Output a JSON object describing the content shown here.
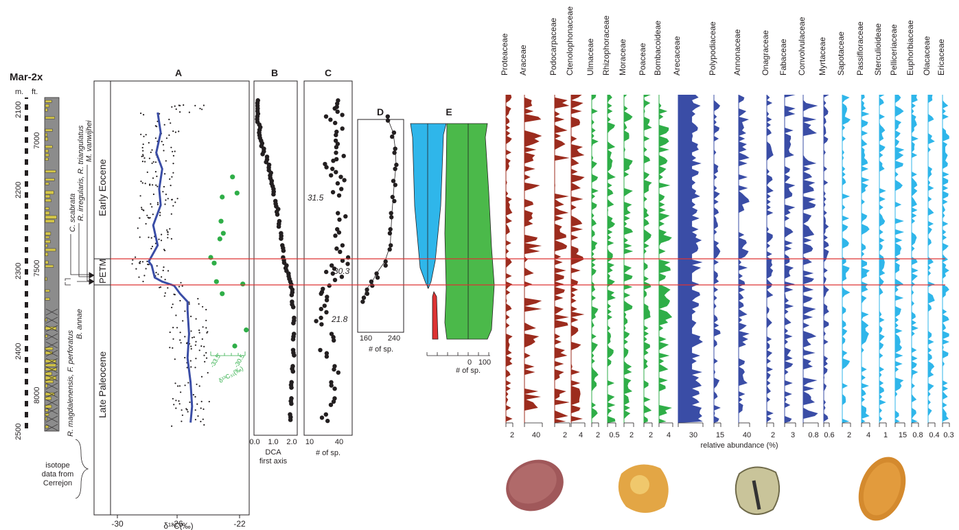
{
  "figure": {
    "section": "Mar-2x",
    "units": {
      "m": "m.",
      "ft": "ft."
    },
    "depth_m_ticks": [
      "2100",
      "2200",
      "2300",
      "2400",
      "2500"
    ],
    "depth_ft_ticks": [
      "7000",
      "7500",
      "8000"
    ],
    "epochs": {
      "early": "Early Eocene",
      "petm": "PETM",
      "late": "Late Paleocene"
    },
    "species_labels": [
      "R. magdalenensis, F. perforatus",
      "B. annae",
      "C. scabrata",
      "R. irregularis, R. triangulatus",
      "M. vanwijhei"
    ],
    "isotope_note": [
      "isotope",
      "data from",
      "Cerrejon"
    ],
    "colors": {
      "blue": "#3a4da6",
      "green": "#2fae48",
      "red": "#dd3333",
      "sky": "#2fb6ea",
      "brown": "#9c2c1e",
      "palegreen": "#4bb94a",
      "ink": "#231f20"
    }
  },
  "panels": {
    "A": {
      "label": "A",
      "xlabel": "δ¹³C(‰)",
      "ticks": [
        "-30",
        "-26",
        "-22"
      ],
      "inset_ticks": [
        "-33.5",
        "-30.5"
      ],
      "inset_label": "δ¹³C₃₁(‰)"
    },
    "B": {
      "label": "B",
      "xlabel": "DCA",
      "xlabel2": "first axis",
      "ticks": [
        "0.0",
        "1.0",
        "2.0"
      ]
    },
    "C": {
      "label": "C",
      "xlabel": "# of sp.",
      "ticks": [
        "10",
        "40"
      ],
      "annotations": [
        "31.5",
        "30.3",
        "21.8"
      ]
    },
    "D": {
      "label": "D",
      "xlabel": "# of sp.",
      "ticks": [
        "160",
        "240"
      ]
    },
    "E": {
      "label": "E",
      "xlabel": "# of sp.",
      "ticks": [
        "0",
        "100"
      ]
    }
  },
  "pollen": {
    "xlabel": "relative abundance (%)",
    "taxa": [
      {
        "name": "Proteaceae",
        "scale": "2",
        "color": "brown"
      },
      {
        "name": "Araceae",
        "scale": "40",
        "color": "brown"
      },
      {
        "name": "Podocarpaceae",
        "scale": "2",
        "color": "brown"
      },
      {
        "name": "Ctenolophonaceae",
        "scale": "4",
        "color": "brown"
      },
      {
        "name": "Ulmaceae",
        "scale": "2",
        "color": "green"
      },
      {
        "name": "Rhizophoraceae",
        "scale": "0.5",
        "color": "green"
      },
      {
        "name": "Moraceae",
        "scale": "2",
        "color": "green"
      },
      {
        "name": "Poaceae",
        "scale": "2",
        "color": "green"
      },
      {
        "name": "Bombacoideae",
        "scale": "4",
        "color": "green"
      },
      {
        "name": "Arecaceae",
        "scale": "30",
        "color": "blue"
      },
      {
        "name": "Polypodiaceae",
        "scale": "15",
        "color": "blue"
      },
      {
        "name": "Annonaceae",
        "scale": "40",
        "color": "blue"
      },
      {
        "name": "Onagraceae",
        "scale": "2",
        "color": "blue"
      },
      {
        "name": "Fabaceae",
        "scale": "3",
        "color": "blue"
      },
      {
        "name": "Convolvulaceae",
        "scale": "0.8",
        "color": "blue"
      },
      {
        "name": "Myrtaceae",
        "scale": "0.6",
        "color": "blue"
      },
      {
        "name": "Sapotaceae",
        "scale": "2",
        "color": "sky"
      },
      {
        "name": "Passifloraceae",
        "scale": "4",
        "color": "sky"
      },
      {
        "name": "Sterculioideae",
        "scale": "1",
        "color": "sky"
      },
      {
        "name": "Pelliceriaceae",
        "scale": "15",
        "color": "sky"
      },
      {
        "name": "Euphorbiaceae",
        "scale": "0.8",
        "color": "sky"
      },
      {
        "name": "Olacaceae",
        "scale": "0.4",
        "color": "sky"
      },
      {
        "name": "Ericaceae",
        "scale": "0.3",
        "color": "sky"
      }
    ]
  },
  "chart_data": [
    {
      "type": "scatter",
      "panel": "A",
      "xlabel": "δ¹³C(‰)",
      "ylabel": "m.",
      "xlim": [
        -31,
        -21.6
      ],
      "ylim": [
        2500,
        2080
      ],
      "smoothed_series": {
        "depth": [
          2105,
          2130,
          2155,
          2175,
          2200,
          2220,
          2245,
          2270,
          2290,
          2295,
          2310,
          2315,
          2320,
          2330,
          2340,
          2350,
          2380,
          2410,
          2440,
          2470,
          2490
        ],
        "d13c": [
          -27.3,
          -27.1,
          -27.4,
          -27.0,
          -27.2,
          -27.1,
          -27.6,
          -27.3,
          -27.9,
          -27.7,
          -27.5,
          -27.0,
          -26.2,
          -25.8,
          -25.3,
          -25.3,
          -25.2,
          -25.3,
          -25.1,
          -25.0,
          -25.1
        ]
      },
      "inset_series": {
        "name": "δ¹³C₃₁(‰)",
        "xlim": [
          -33.5,
          -30.5
        ],
        "depth": [
          2185,
          2205,
          2210,
          2240,
          2255,
          2262,
          2285,
          2292,
          2315,
          2318,
          2330,
          2375,
          2395
        ],
        "d13c31": [
          -31.6,
          -31.2,
          -32.5,
          -32.6,
          -32.4,
          -32.7,
          -33.5,
          -33.2,
          -33.0,
          -30.7,
          -32.5,
          -30.4,
          -31.4
        ]
      }
    },
    {
      "type": "scatter",
      "panel": "B",
      "xlabel": "DCA first axis",
      "xlim": [
        0,
        2.6
      ],
      "ylim": [
        2500,
        2080
      ],
      "depth": [
        2090,
        2100,
        2110,
        2120,
        2130,
        2140,
        2150,
        2160,
        2170,
        2180,
        2190,
        2200,
        2215,
        2225,
        2240,
        2255,
        2270,
        2285,
        2295,
        2305,
        2315,
        2325,
        2340,
        2360,
        2380,
        2400,
        2420,
        2440,
        2460,
        2480
      ],
      "values": [
        0.1,
        0.1,
        0.1,
        0.2,
        0.2,
        0.3,
        0.4,
        0.6,
        0.7,
        0.8,
        0.9,
        1.0,
        1.1,
        1.2,
        1.3,
        1.4,
        1.5,
        1.55,
        1.7,
        1.85,
        1.95,
        2.0,
        2.05,
        2.1,
        2.1,
        2.1,
        2.05,
        2.0,
        1.95,
        1.9
      ]
    },
    {
      "type": "scatter",
      "panel": "C",
      "xlabel": "# of sp.",
      "xlim": [
        0,
        55
      ],
      "ylim": [
        2500,
        2080
      ],
      "depth": [
        2090,
        2100,
        2110,
        2125,
        2140,
        2155,
        2165,
        2175,
        2185,
        2200,
        2230,
        2250,
        2270,
        2285,
        2295,
        2305,
        2320,
        2330,
        2345,
        2360,
        2380,
        2400,
        2420,
        2440,
        2460,
        2480
      ],
      "values": [
        34,
        38,
        30,
        42,
        35,
        40,
        28,
        36,
        44,
        38,
        42,
        35,
        40,
        45,
        30,
        38,
        25,
        22,
        20,
        15,
        28,
        22,
        38,
        30,
        35,
        25
      ],
      "annotations": [
        "31.5",
        "30.3",
        "21.8"
      ]
    },
    {
      "type": "line",
      "panel": "D",
      "xlabel": "# of sp.",
      "xlim": [
        150,
        260
      ],
      "ylim": [
        2500,
        2080
      ],
      "depth": [
        2110,
        2130,
        2150,
        2170,
        2190,
        2210,
        2230,
        2250,
        2270,
        2290,
        2305,
        2315,
        2325,
        2335
      ],
      "values": [
        220,
        235,
        240,
        242,
        238,
        235,
        232,
        230,
        228,
        215,
        195,
        185,
        170,
        165
      ]
    },
    {
      "type": "area",
      "panel": "E",
      "xlabel": "# of sp.",
      "xlim": [
        -200,
        160
      ],
      "ylim": [
        2500,
        2080
      ],
      "series": [
        {
          "depth": [
            2115,
            2300,
            2325
          ],
          "halfwidth": [
            50,
            20,
            2
          ]
        },
        {
          "depth": [
            2115,
            2300,
            2410
          ],
          "halfwidth": [
            90,
            95,
            90
          ]
        }
      ]
    },
    {
      "type": "area",
      "panel": "pollen",
      "xlabel": "relative abundance (%)",
      "ylim": [
        2500,
        2080
      ]
    }
  ]
}
